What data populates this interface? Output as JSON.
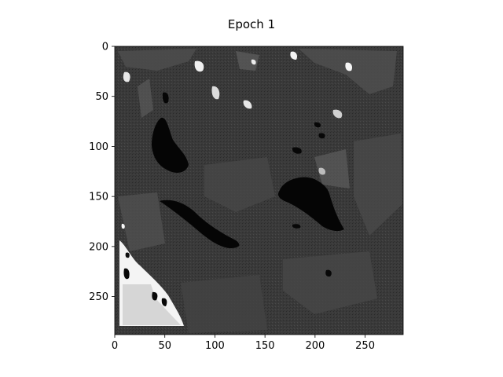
{
  "chart_data": {
    "type": "heatmap",
    "title": "Epoch 1",
    "xlabel": "",
    "ylabel": "",
    "colormap": "gray",
    "image_width": 288,
    "image_height": 288,
    "xlim": [
      0,
      288
    ],
    "ylim": [
      288,
      0
    ],
    "x_ticks": [
      0,
      50,
      100,
      150,
      200,
      250
    ],
    "y_ticks": [
      0,
      50,
      100,
      150,
      200,
      250
    ],
    "grid": false,
    "regions": [
      {
        "name": "background",
        "value": 0.22
      },
      {
        "name": "dark-blob-left",
        "value": 0.0
      },
      {
        "name": "dark-diagonal-band",
        "value": 0.0
      },
      {
        "name": "dark-blob-right",
        "value": 0.0
      },
      {
        "name": "bright-patch-bottom-left",
        "value": 0.85
      },
      {
        "name": "white-spots",
        "value": 1.0
      },
      {
        "name": "mid-gray-streaks",
        "value": 0.35
      }
    ],
    "colors": {
      "dark": "#050505",
      "background": "#393939",
      "mid": "#595959",
      "light": "#d9d9d9",
      "white": "#ffffff"
    }
  }
}
